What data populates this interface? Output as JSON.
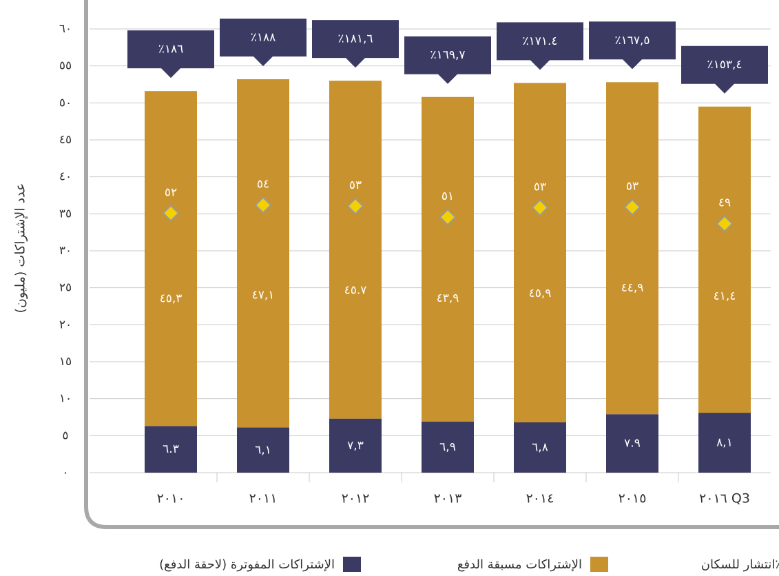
{
  "chart_data": {
    "type": "stacked-bar",
    "y_label": "عدد الإشتراكات (مليون)",
    "categories": [
      "٢٠١٠",
      "٢٠١١",
      "٢٠١٢",
      "٢٠١٣",
      "٢٠١٤",
      "٢٠١٥",
      "٢٠١٦ Q3"
    ],
    "series": [
      {
        "name": "الإشتراكات المفوترة (لاحقة الدفع)",
        "color": "#3b3a63",
        "values": [
          6.3,
          6.1,
          7.3,
          6.9,
          6.8,
          7.9,
          8.1
        ],
        "value_labels": [
          "٦.٣",
          "٦,١",
          "٧,٣",
          "٦,٩",
          "٦,٨",
          "٧.٩",
          "٨,١"
        ]
      },
      {
        "name": "الإشتراكات مسبقة الدفع",
        "color": "#c8922e",
        "values": [
          45.3,
          47.1,
          45.7,
          43.9,
          45.9,
          44.9,
          41.4
        ],
        "value_labels": [
          "٤٥,٣",
          "٤٧,١",
          "٤٥.٧",
          "٤٣,٩",
          "٤٥,٩",
          "٤٤,٩",
          "٤١,٤"
        ]
      }
    ],
    "totals": {
      "color": "#f5d000",
      "values": [
        52,
        54,
        53,
        51,
        53,
        53,
        49
      ],
      "value_labels": [
        "٥٢",
        "٥٤",
        "٥٣",
        "٥١",
        "٥٣",
        "٥٣",
        "٤٩"
      ]
    },
    "penetration": {
      "name": "انتشار للسكان٪",
      "color": "#3b3a63",
      "values": [
        186,
        188,
        181.6,
        169.7,
        171.4,
        167.5,
        153.4
      ],
      "value_labels": [
        "٪١٨٦",
        "٪١٨٨",
        "٪١٨١,٦",
        "٪١٦٩,٧",
        "٪١٧١.٤",
        "٪١٦٧,٥",
        "٪١٥٣,٤"
      ]
    },
    "ylim": [
      0,
      60
    ],
    "yticks": [
      {
        "value": 0,
        "label": "٠"
      },
      {
        "value": 5,
        "label": "٥"
      },
      {
        "value": 10,
        "label": "١٠"
      },
      {
        "value": 15,
        "label": "١٥"
      },
      {
        "value": 20,
        "label": "٢٠"
      },
      {
        "value": 25,
        "label": "٢٥"
      },
      {
        "value": 30,
        "label": "٣٠"
      },
      {
        "value": 35,
        "label": "٣٥"
      },
      {
        "value": 40,
        "label": "٤٠"
      },
      {
        "value": 45,
        "label": "٤٥"
      },
      {
        "value": 50,
        "label": "٥٠"
      },
      {
        "value": 55,
        "label": "٥٥"
      },
      {
        "value": 60,
        "label": "٦٠"
      }
    ],
    "grid": true
  }
}
